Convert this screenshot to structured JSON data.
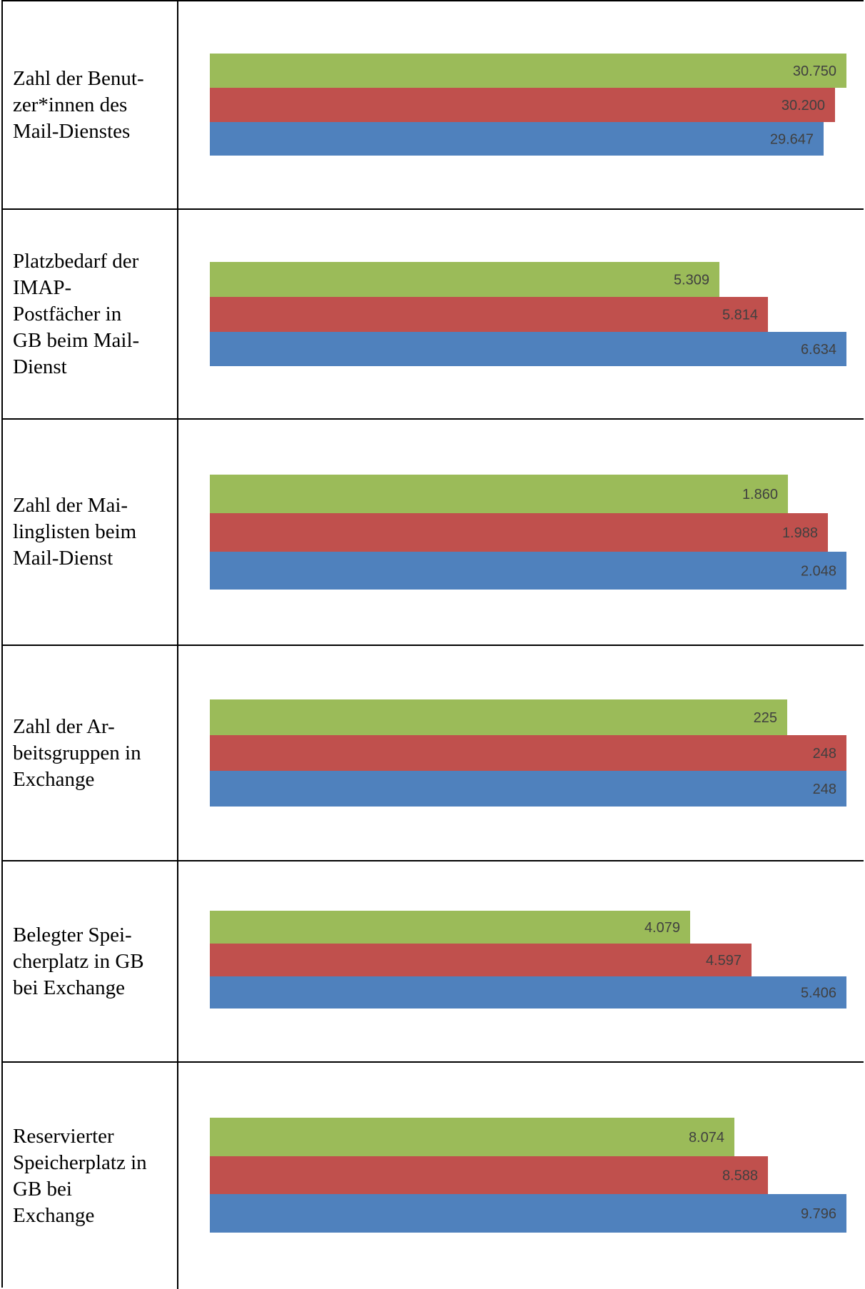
{
  "chart_data": [
    {
      "type": "bar",
      "orientation": "horizontal",
      "category": "Zahl der Benut-\nzer*innen des\nMail-Dienstes",
      "values": [
        "30.750",
        "30.200",
        "29.647"
      ],
      "numeric": [
        30750,
        30200,
        29647
      ],
      "max": 30750,
      "colors": [
        "#9bbb59",
        "#c0504d",
        "#4f81bd"
      ]
    },
    {
      "type": "bar",
      "orientation": "horizontal",
      "category": "Platzbedarf der\nIMAP-\nPostfächer in\nGB beim Mail-\nDienst",
      "values": [
        "5.309",
        "5.814",
        "6.634"
      ],
      "numeric": [
        5309,
        5814,
        6634
      ],
      "max": 6634,
      "colors": [
        "#9bbb59",
        "#c0504d",
        "#4f81bd"
      ]
    },
    {
      "type": "bar",
      "orientation": "horizontal",
      "category": "Zahl der Mai-\nlinglisten beim\nMail-Dienst",
      "values": [
        "1.860",
        "1.988",
        "2.048"
      ],
      "numeric": [
        1860,
        1988,
        2048
      ],
      "max": 2048,
      "colors": [
        "#9bbb59",
        "#c0504d",
        "#4f81bd"
      ]
    },
    {
      "type": "bar",
      "orientation": "horizontal",
      "category": "Zahl der Ar-\nbeitsgruppen in\nExchange",
      "values": [
        "225",
        "248",
        "248"
      ],
      "numeric": [
        225,
        248,
        248
      ],
      "max": 248,
      "colors": [
        "#9bbb59",
        "#c0504d",
        "#4f81bd"
      ]
    },
    {
      "type": "bar",
      "orientation": "horizontal",
      "category": "Belegter Spei-\ncherplatz in GB\nbei Exchange",
      "values": [
        "4.079",
        "4.597",
        "5.406"
      ],
      "numeric": [
        4079,
        4597,
        5406
      ],
      "max": 5406,
      "colors": [
        "#9bbb59",
        "#c0504d",
        "#4f81bd"
      ]
    },
    {
      "type": "bar",
      "orientation": "horizontal",
      "category": "Reservierter\nSpeicherplatz in\nGB bei\nExchange",
      "values": [
        "8.074",
        "8.588",
        "9.796"
      ],
      "numeric": [
        8074,
        8588,
        9796
      ],
      "max": 9796,
      "colors": [
        "#9bbb59",
        "#c0504d",
        "#4f81bd"
      ]
    }
  ]
}
